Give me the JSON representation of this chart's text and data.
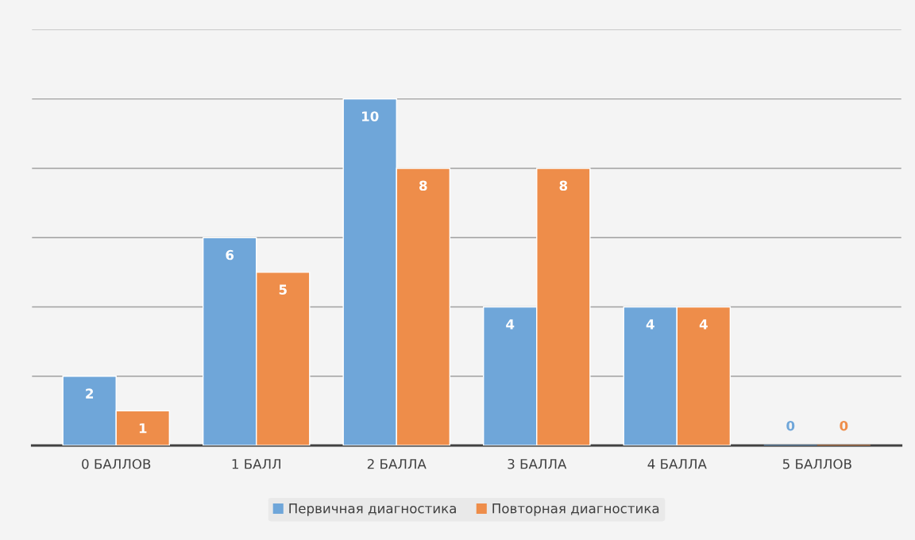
{
  "chart_data": {
    "type": "bar",
    "categories": [
      "0 БАЛЛОВ",
      "1 БАЛЛ",
      "2 БАЛЛА",
      "3 БАЛЛА",
      "4 БАЛЛА",
      "5 БАЛЛОВ"
    ],
    "series": [
      {
        "name": "Первичная диагностика",
        "color": "#6fa6d9",
        "values": [
          2,
          6,
          10,
          4,
          4,
          0
        ]
      },
      {
        "name": "Повторная диагностика",
        "color": "#ee8d4a",
        "values": [
          1,
          5,
          8,
          8,
          4,
          0
        ]
      }
    ],
    "ylim": [
      0,
      12
    ],
    "yticks": [
      {
        "value": 0,
        "label": null
      },
      {
        "value": 2,
        "label": null
      },
      {
        "value": 4,
        "label": null
      },
      {
        "value": 6,
        "label": null
      },
      {
        "value": 8,
        "label": null
      },
      {
        "value": 10,
        "label": null
      },
      {
        "value": 12,
        "label": null
      }
    ],
    "grid": "y",
    "legend": "bottom",
    "data_labels": true,
    "tick_labels": "x"
  }
}
